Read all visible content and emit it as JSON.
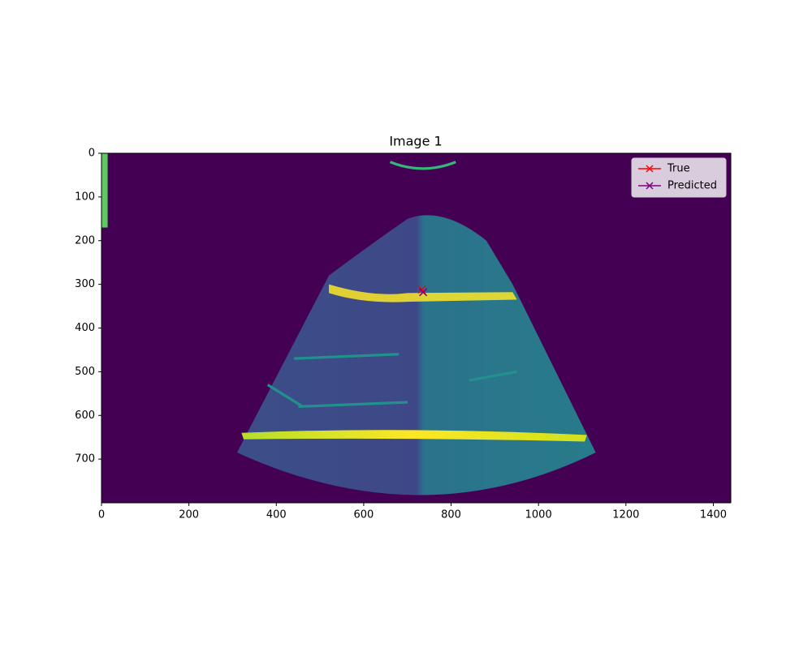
{
  "chart_data": {
    "type": "image-scatter",
    "title": "Image 1",
    "xlim": [
      0,
      1440
    ],
    "ylim": [
      800,
      0
    ],
    "xticks": [
      0,
      200,
      400,
      600,
      800,
      1000,
      1200,
      1400
    ],
    "yticks": [
      0,
      100,
      200,
      300,
      400,
      500,
      600,
      700
    ],
    "legend": "upper right",
    "series": [
      {
        "name": "True",
        "color": "#ff0000",
        "x": [
          733
        ],
        "values": [
          312
        ]
      },
      {
        "name": "Predicted",
        "color": "#800080",
        "x": [
          736
        ],
        "values": [
          318
        ]
      }
    ]
  }
}
